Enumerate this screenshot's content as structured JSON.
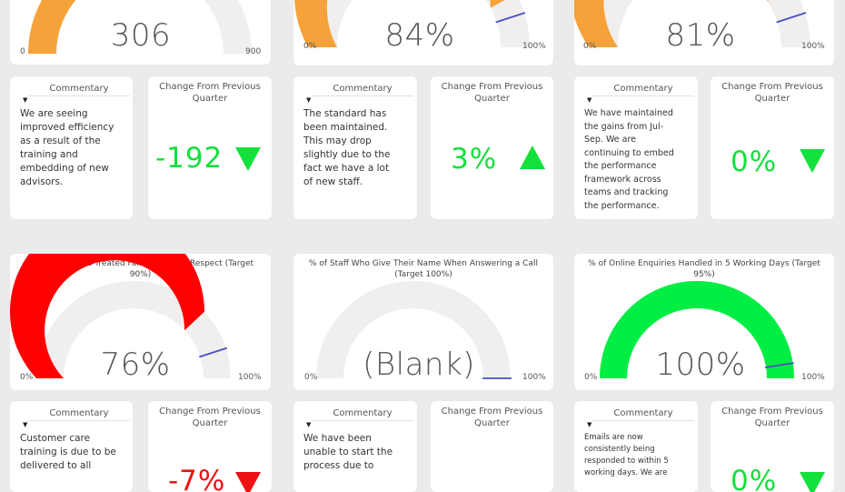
{
  "colors": {
    "orange": "#f6a23a",
    "red": "#ff0000",
    "green": "#00ee44",
    "track": "#f0efee",
    "target_line": "#4a4ec4",
    "change_green": "#14e03c",
    "change_red": "#ee1111"
  },
  "top_row": {
    "gauges": [
      {
        "value": "306",
        "min": "0",
        "max": "900",
        "fill_fraction": 0.34
      },
      {
        "value": "84%",
        "min": "0%",
        "max": "100%",
        "fill_fraction": 0.84,
        "target_fraction": 0.9
      },
      {
        "value": "81%",
        "min": "0%",
        "max": "100%",
        "fill_fraction": 0.81,
        "target_fraction": 0.9
      }
    ],
    "commentary": [
      {
        "header": "Commentary",
        "text": "We are seeing improved efficiency as a result of the training and embedding of new advisors."
      },
      {
        "header": "Commentary",
        "text": "The standard has been maintained. This may drop slightly due to the fact we have a lot of new staff."
      },
      {
        "header": "Commentary",
        "text": "We have maintained the gains from Jul-Sep. We are continuing to embed the performance framework across teams and tracking the performance."
      }
    ],
    "changes": [
      {
        "title": "Change From Previous Quarter",
        "value": "-192",
        "arrow": "down-arrow-icon"
      },
      {
        "title": "Change From Previous Quarter",
        "value": "3%",
        "arrow": "up-arrow-icon"
      },
      {
        "title": "Change From Previous Quarter",
        "value": "0%",
        "arrow": "down-arrow-icon"
      }
    ]
  },
  "bottom_row": {
    "gauges": [
      {
        "title": "% of Customers Treated Fairly and with Respect (Target 90%)",
        "value": "76%",
        "min": "0%",
        "max": "100%",
        "fill_fraction": 0.76,
        "target_fraction": 0.9
      },
      {
        "title": "% of Staff Who Give Their Name When Answering a Call (Target 100%)",
        "value": "(Blank)",
        "min": "0%",
        "max": "100%",
        "fill_fraction": 0,
        "target_fraction": 1.0
      },
      {
        "title": "% of Online Enquiries Handled in 5 Working Days (Target 95%)",
        "value": "100%",
        "min": "0%",
        "max": "100%",
        "fill_fraction": 1.0,
        "target_fraction": 0.95
      }
    ],
    "commentary": [
      {
        "header": "Commentary",
        "text": "Customer care training is due to be delivered to all"
      },
      {
        "header": "Commentary",
        "text": "We have been unable to start the process due to"
      },
      {
        "header": "Commentary",
        "text": "Emails are now consistently being responded to within 5 working days. We are"
      }
    ],
    "changes": [
      {
        "title": "Change From Previous Quarter",
        "value": "-7%",
        "arrow": "down-arrow-icon"
      },
      {
        "title": "Change From Previous Quarter",
        "value": ""
      },
      {
        "title": "Change From Previous Quarter",
        "value": "0%",
        "arrow": "down-arrow-icon"
      }
    ]
  }
}
